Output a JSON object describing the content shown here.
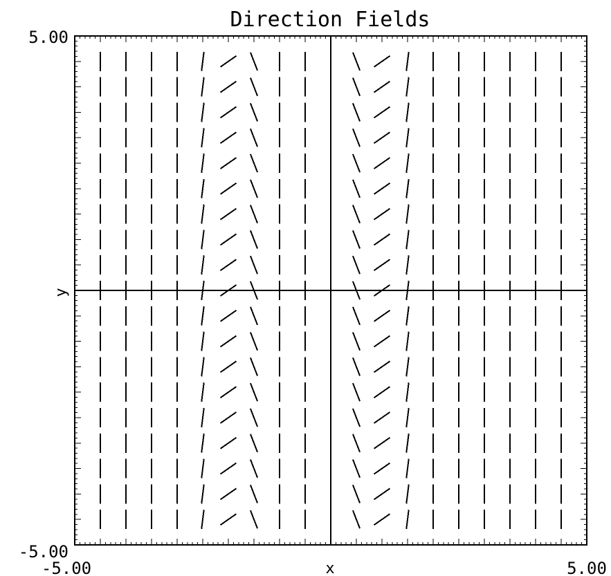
{
  "chart_data": {
    "type": "direction_field",
    "title": "Direction Fields",
    "xlabel": "x",
    "ylabel": "y",
    "xlim": [
      -5,
      5
    ],
    "ylim": [
      -5,
      5
    ],
    "x_tick_labels": [
      "-5.00",
      "5.00"
    ],
    "y_tick_labels": [
      "5.00",
      "-5.00"
    ],
    "grid": false,
    "segment_x_values": [
      -4.5,
      -4.0,
      -3.5,
      -3.0,
      -2.5,
      -2.0,
      -1.5,
      -1.0,
      -0.5,
      0.5,
      1.0,
      1.5,
      2.0,
      2.5,
      3.0,
      3.5,
      4.0,
      4.5
    ],
    "segment_y_values": [
      4.5,
      4.0,
      3.5,
      3.0,
      2.5,
      2.0,
      1.5,
      1.0,
      0.5,
      0.0,
      -0.5,
      -1.0,
      -1.5,
      -2.0,
      -2.5,
      -3.0,
      -3.5,
      -4.0,
      -4.5
    ],
    "slopes_by_x": [
      {
        "x": -4.5,
        "slope": "vertical"
      },
      {
        "x": -4.0,
        "slope": "vertical"
      },
      {
        "x": -3.5,
        "slope": "vertical"
      },
      {
        "x": -3.0,
        "slope": "vertical"
      },
      {
        "x": -2.5,
        "slope": 8
      },
      {
        "x": -2.0,
        "slope": 0.7
      },
      {
        "x": -1.5,
        "slope": -2.6
      },
      {
        "x": -1.0,
        "slope": "vertical"
      },
      {
        "x": -0.5,
        "slope": "vertical"
      },
      {
        "x": 0.5,
        "slope": -2.6
      },
      {
        "x": 1.0,
        "slope": 0.7
      },
      {
        "x": 1.5,
        "slope": 8
      },
      {
        "x": 2.0,
        "slope": "vertical"
      },
      {
        "x": 2.5,
        "slope": "vertical"
      },
      {
        "x": 3.0,
        "slope": "vertical"
      },
      {
        "x": 3.5,
        "slope": "vertical"
      },
      {
        "x": 4.0,
        "slope": "vertical"
      },
      {
        "x": 4.5,
        "slope": "vertical"
      }
    ],
    "accent_color": "#800080",
    "line_color": "#000000"
  }
}
